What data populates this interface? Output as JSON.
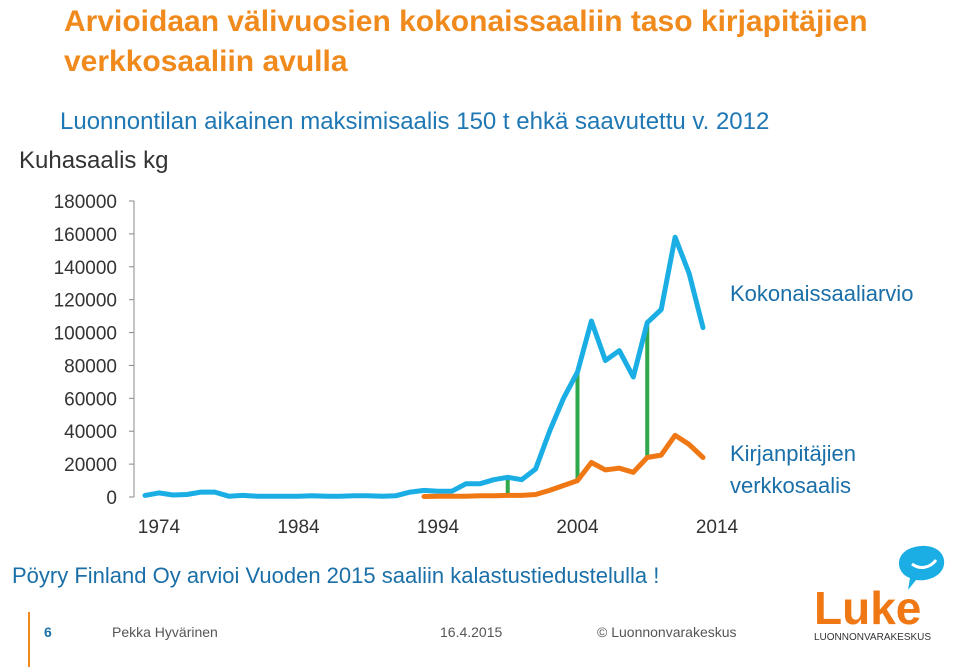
{
  "title": "Arvioidaan välivuosien kokonaissaaliin taso kirjapitäjien verkkosaaliin avulla",
  "subtitle": "Luonnontilan aikainen maksimisaalis 150 t ehkä saavutettu v. 2012",
  "y_axis_label": "Kuhasaalis kg",
  "source_note": "Pöyry Finland Oy arvioi Vuoden 2015 saaliin kalastustiedustelulla !",
  "footer": {
    "slide_number": "6",
    "author": "Pekka Hyvärinen",
    "date": "16.4.2015",
    "copyright": "© Luonnonvarakeskus"
  },
  "logo": {
    "text": "Luke",
    "subtext": "LUONNONVARAKESKUS"
  },
  "colors": {
    "title": "#f08a1d",
    "subtitle": "#1f77b4",
    "total_series": "#1aaee5",
    "net_series": "#f07814",
    "markers": "#2ea84a"
  },
  "chart_data": {
    "type": "line",
    "xlim": [
      1973,
      2014
    ],
    "ylim": [
      0,
      180000
    ],
    "y_ticks": [
      "180000",
      "160000",
      "140000",
      "120000",
      "100000",
      "80000",
      "60000",
      "40000",
      "20000",
      "0"
    ],
    "y_tick_values": [
      180000,
      160000,
      140000,
      120000,
      100000,
      80000,
      60000,
      40000,
      20000,
      0
    ],
    "x_ticks": [
      "1974",
      "1984",
      "1994",
      "2004",
      "2014"
    ],
    "x_tick_values": [
      1974,
      1984,
      1994,
      2004,
      2014
    ],
    "x": [
      1973,
      1974,
      1975,
      1976,
      1977,
      1978,
      1979,
      1980,
      1981,
      1982,
      1983,
      1984,
      1985,
      1986,
      1987,
      1988,
      1989,
      1990,
      1991,
      1992,
      1993,
      1994,
      1995,
      1996,
      1997,
      1998,
      1999,
      2000,
      2001,
      2002,
      2003,
      2004,
      2005,
      2006,
      2007,
      2008,
      2009,
      2010,
      2011,
      2012,
      2013,
      2014
    ],
    "series": [
      {
        "name": "Kokonaissaaliarvio",
        "values": [
          1000,
          2500,
          1200,
          1500,
          3000,
          3000,
          500,
          1000,
          500,
          500,
          500,
          500,
          800,
          500,
          500,
          800,
          800,
          500,
          800,
          3000,
          4000,
          3500,
          3500,
          8000,
          8000,
          10500,
          12000,
          10500,
          17000,
          40000,
          60000,
          76000,
          107000,
          83000,
          89000,
          73000,
          106000,
          114000,
          158000,
          136000,
          103000,
          null
        ]
      },
      {
        "name": "Kirjanpitäjien verkkosaalis",
        "values": [
          null,
          null,
          null,
          null,
          null,
          null,
          null,
          null,
          null,
          null,
          null,
          null,
          null,
          null,
          null,
          null,
          null,
          null,
          null,
          null,
          300,
          500,
          500,
          500,
          800,
          800,
          1000,
          1000,
          1500,
          4000,
          7000,
          10000,
          21000,
          16500,
          17500,
          15000,
          24000,
          25500,
          37500,
          32000,
          24000,
          null
        ]
      }
    ],
    "marker_years": [
      2004,
      2009
    ],
    "marker_extra_year": 1999
  }
}
